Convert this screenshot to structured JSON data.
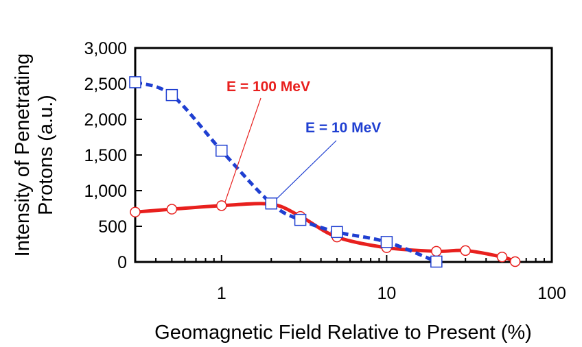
{
  "chart_data": {
    "type": "line",
    "xlabel": "Geomagnetic Field Relative to Present (%)",
    "ylabel": [
      "Intensity of Penetrating",
      "Protons (a.u.)"
    ],
    "x_scale": "log",
    "xlim": [
      0.3,
      100
    ],
    "ylim": [
      0,
      3000
    ],
    "x_ticks": [
      1,
      10,
      100
    ],
    "x_tick_labels": [
      "1",
      "10",
      "100"
    ],
    "y_ticks": [
      0,
      500,
      1000,
      1500,
      2000,
      2500,
      3000
    ],
    "y_tick_labels": [
      "0",
      "500",
      "1,000",
      "1,500",
      "2,000",
      "2,500",
      "3,000"
    ],
    "grid": false,
    "series": [
      {
        "name": "E = 100 MeV",
        "color": "#e8201e",
        "marker": "circle",
        "line": "solid",
        "x": [
          0.3,
          0.5,
          1,
          2,
          3,
          5,
          10,
          20,
          30,
          50,
          60
        ],
        "y": [
          700,
          740,
          790,
          810,
          640,
          350,
          200,
          150,
          160,
          70,
          5
        ]
      },
      {
        "name": "E = 10 MeV",
        "color": "#1f3fd1",
        "marker": "square",
        "line": "dashed",
        "x": [
          0.3,
          0.5,
          1,
          2,
          3,
          5,
          10,
          20
        ],
        "y": [
          2520,
          2340,
          1560,
          820,
          590,
          420,
          280,
          5
        ]
      }
    ],
    "annotations": [
      {
        "text": "E = 100 MeV",
        "series": 0,
        "color": "#e8201e",
        "points_to_x": 1.05,
        "points_to_y": 840
      },
      {
        "text": "E = 10 MeV",
        "series": 1,
        "color": "#1f3fd1",
        "points_to_x": 2.1,
        "points_to_y": 860
      }
    ]
  }
}
